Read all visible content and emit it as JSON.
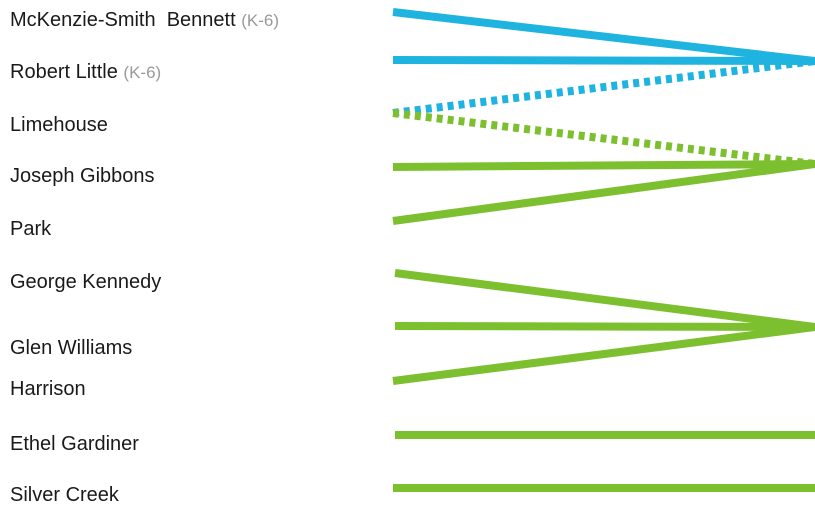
{
  "schools": [
    {
      "id": "mckenzie-smith-bennett",
      "name": "McKenzie-Smith  Bennett",
      "note": "(K-6)",
      "category": "blue"
    },
    {
      "id": "robert-little",
      "name": "Robert Little",
      "note": "(K-6)",
      "category": "blue"
    },
    {
      "id": "limehouse",
      "name": "Limehouse",
      "note": "",
      "category": "split"
    },
    {
      "id": "joseph-gibbons",
      "name": "Joseph Gibbons",
      "note": "",
      "category": "green"
    },
    {
      "id": "park",
      "name": "Park",
      "note": "",
      "category": "green"
    },
    {
      "id": "george-kennedy",
      "name": "George Kennedy",
      "note": "",
      "category": "green"
    },
    {
      "id": "glen-williams",
      "name": "Glen Williams",
      "note": "",
      "category": "green"
    },
    {
      "id": "harrison",
      "name": "Harrison",
      "note": "",
      "category": "green"
    },
    {
      "id": "ethel-gardiner",
      "name": "Ethel Gardiner",
      "note": "",
      "category": "green"
    },
    {
      "id": "silver-creek",
      "name": "Silver Creek",
      "note": "",
      "category": "green"
    }
  ],
  "connections": [
    {
      "from": "mckenzie-smith-bennett",
      "to": "destination-1",
      "color": "blue",
      "style": "solid"
    },
    {
      "from": "robert-little",
      "to": "destination-1",
      "color": "blue",
      "style": "solid"
    },
    {
      "from": "limehouse",
      "to": "destination-1",
      "color": "blue",
      "style": "dotted"
    },
    {
      "from": "limehouse",
      "to": "destination-2",
      "color": "green",
      "style": "dotted"
    },
    {
      "from": "joseph-gibbons",
      "to": "destination-2",
      "color": "green",
      "style": "solid"
    },
    {
      "from": "park",
      "to": "destination-2",
      "color": "green",
      "style": "solid"
    },
    {
      "from": "george-kennedy",
      "to": "destination-3",
      "color": "green",
      "style": "solid"
    },
    {
      "from": "glen-williams",
      "to": "destination-3",
      "color": "green",
      "style": "solid"
    },
    {
      "from": "harrison",
      "to": "destination-3",
      "color": "green",
      "style": "solid"
    },
    {
      "from": "ethel-gardiner",
      "to": "destination-4",
      "color": "green",
      "style": "solid"
    },
    {
      "from": "silver-creek",
      "to": "destination-5",
      "color": "green",
      "style": "solid"
    }
  ],
  "colors": {
    "blue": "#1fb3e0",
    "green": "#7dc02f",
    "text": "#1a1a1a",
    "note": "#9a9a9a"
  }
}
